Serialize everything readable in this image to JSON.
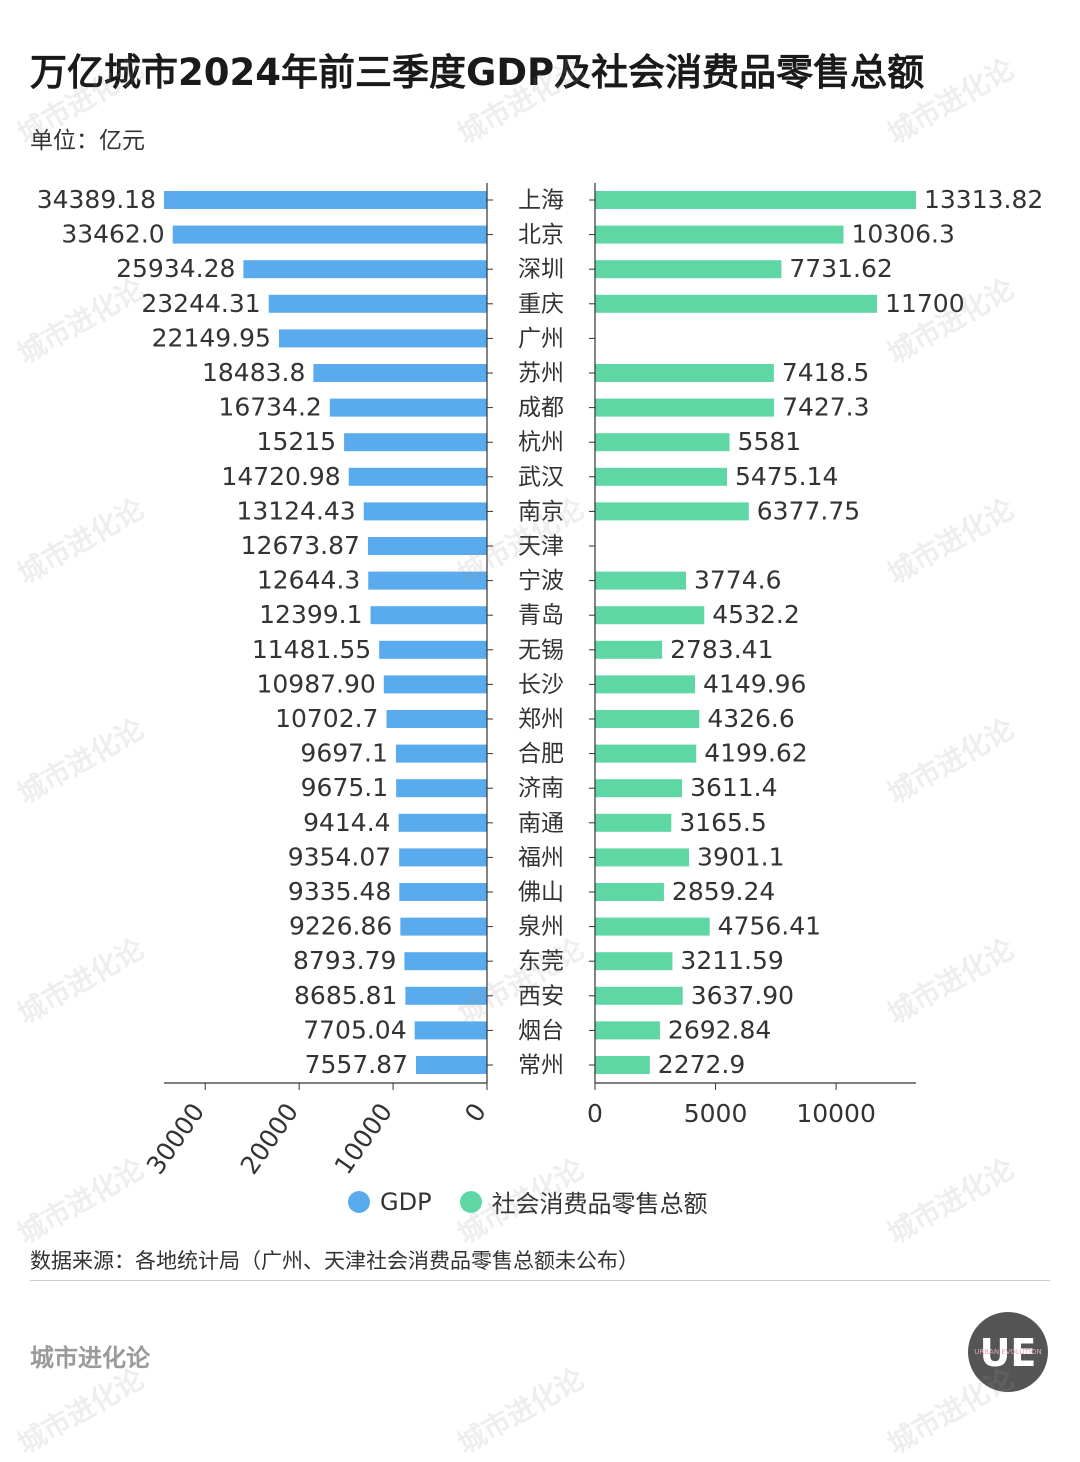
{
  "title": "万亿城市2024年前三季度GDP及社会消费品零售总额",
  "unit_label": "单位：亿元",
  "legend": {
    "gdp": "GDP",
    "retail": "社会消费品零售总额"
  },
  "source_note": "数据来源：各地统计局（广州、天津社会消费品零售总额未公布）",
  "brand": "城市进化论",
  "logo_text": "UE",
  "logo_subtext": "URBAN EVOLUTION",
  "watermark_text": "城市进化论",
  "colors": {
    "gdp": "#5aabed",
    "retail": "#5ed7a5",
    "axis": "#333333"
  },
  "chart_data": {
    "type": "bar",
    "orientation": "horizontal",
    "categories": [
      "上海",
      "北京",
      "深圳",
      "重庆",
      "广州",
      "苏州",
      "成都",
      "杭州",
      "武汉",
      "南京",
      "天津",
      "宁波",
      "青岛",
      "无锡",
      "长沙",
      "郑州",
      "合肥",
      "济南",
      "南通",
      "福州",
      "佛山",
      "泉州",
      "东莞",
      "西安",
      "烟台",
      "常州"
    ],
    "series": [
      {
        "name": "GDP",
        "labels": [
          "34389.18",
          "33462.0",
          "25934.28",
          "23244.31",
          "22149.95",
          "18483.8",
          "16734.2",
          "15215",
          "14720.98",
          "13124.43",
          "12673.87",
          "12644.3",
          "12399.1",
          "11481.55",
          "10987.90",
          "10702.7",
          "9697.1",
          "9675.1",
          "9414.4",
          "9354.07",
          "9335.48",
          "9226.86",
          "8793.79",
          "8685.81",
          "7705.04",
          "7557.87"
        ],
        "values": [
          34389.18,
          33462.0,
          25934.28,
          23244.31,
          22149.95,
          18483.8,
          16734.2,
          15215,
          14720.98,
          13124.43,
          12673.87,
          12644.3,
          12399.1,
          11481.55,
          10987.9,
          10702.7,
          9697.1,
          9675.1,
          9414.4,
          9354.07,
          9335.48,
          9226.86,
          8793.79,
          8685.81,
          7705.04,
          7557.87
        ]
      },
      {
        "name": "社会消费品零售总额",
        "labels": [
          "13313.82",
          "10306.3",
          "7731.62",
          "11700",
          null,
          "7418.5",
          "7427.3",
          "5581",
          "5475.14",
          "6377.75",
          null,
          "3774.6",
          "4532.2",
          "2783.41",
          "4149.96",
          "4326.6",
          "4199.62",
          "3611.4",
          "3165.5",
          "3901.1",
          "2859.24",
          "4756.41",
          "3211.59",
          "3637.90",
          "2692.84",
          "2272.9"
        ],
        "values": [
          13313.82,
          10306.3,
          7731.62,
          11700,
          null,
          7418.5,
          7427.3,
          5581,
          5475.14,
          6377.75,
          null,
          3774.6,
          4532.2,
          2783.41,
          4149.96,
          4326.6,
          4199.62,
          3611.4,
          3165.5,
          3901.1,
          2859.24,
          4756.41,
          3211.59,
          3637.9,
          2692.84,
          2272.9
        ]
      }
    ],
    "left_axis": {
      "ticks": [
        "30000",
        "20000",
        "10000",
        "0"
      ],
      "tick_values": [
        30000,
        20000,
        10000,
        0
      ],
      "reversed": true
    },
    "right_axis": {
      "ticks": [
        "0",
        "5000",
        "10000"
      ],
      "tick_values": [
        0,
        5000,
        10000
      ]
    },
    "grid": false,
    "legend_position": "bottom-center"
  }
}
